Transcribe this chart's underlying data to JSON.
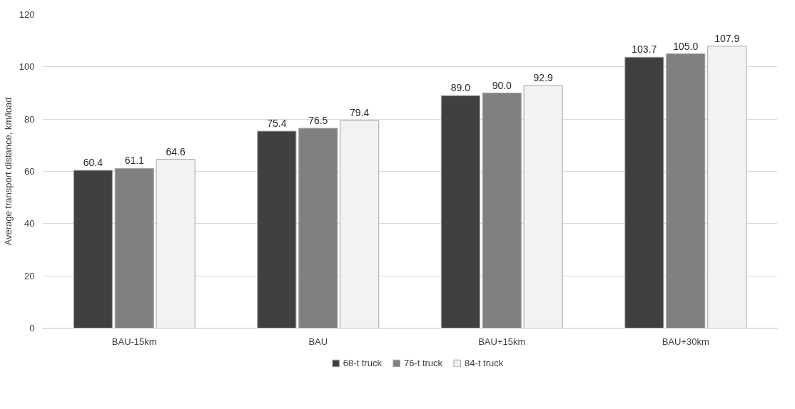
{
  "chart_data": {
    "type": "bar",
    "ylabel": "Average transport distance, km/load",
    "categories": [
      "BAU-15km",
      "BAU",
      "BAU+15km",
      "BAU+30km"
    ],
    "series": [
      {
        "name": "68-t truck",
        "color": "#404040",
        "values": [
          60.4,
          75.4,
          89.0,
          103.7
        ],
        "value_labels": [
          "60.4",
          "75.4",
          "89.0",
          "103.7"
        ]
      },
      {
        "name": "76-t truck",
        "color": "#808080",
        "values": [
          61.1,
          76.5,
          90.0,
          105.0
        ],
        "value_labels": [
          "61.1",
          "76.5",
          "90.0",
          "105.0"
        ]
      },
      {
        "name": "84-t truck",
        "color": "#f2f2f2",
        "values": [
          64.6,
          79.4,
          92.9,
          107.9
        ],
        "value_labels": [
          "64.6",
          "79.4",
          "92.9",
          "107.9"
        ]
      }
    ],
    "ylim": [
      0,
      120
    ],
    "yticks": [
      0,
      20,
      40,
      60,
      80,
      100,
      120
    ],
    "grid": "y",
    "legend": "bottom"
  }
}
